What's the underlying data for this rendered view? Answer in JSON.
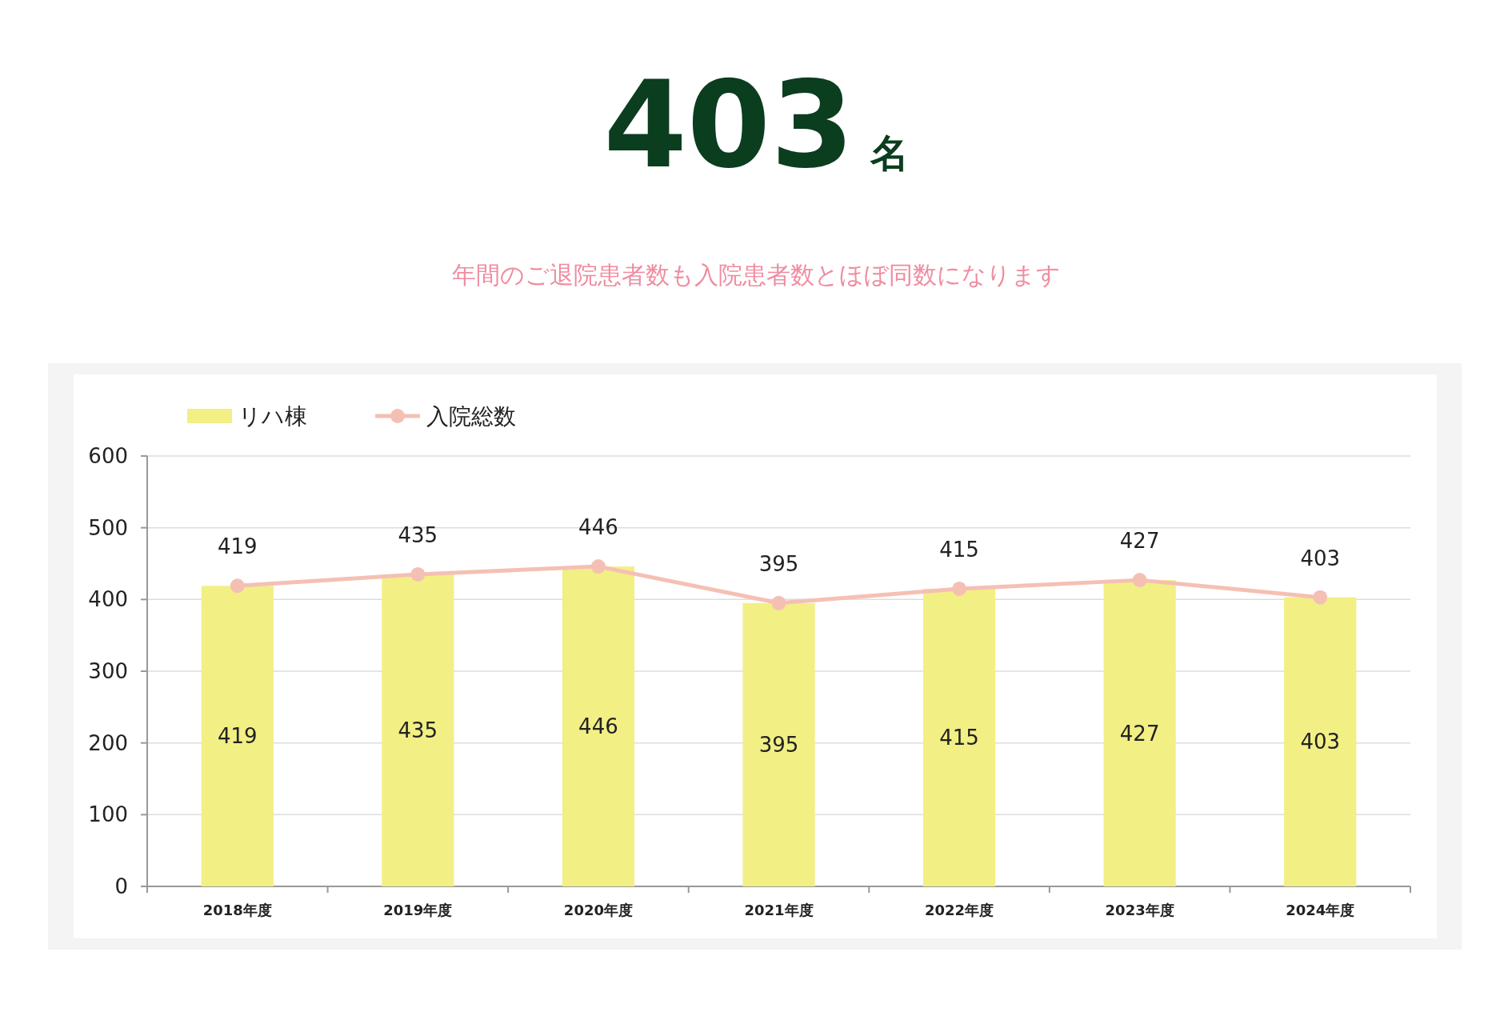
{
  "chart_data": {
    "type": "bar",
    "title": "403名",
    "subtitle": "年間のご退院患者数も入院患者数とほぼ同数になります",
    "categories": [
      "2018年度",
      "2019年度",
      "2020年度",
      "2021年度",
      "2022年度",
      "2023年度",
      "2024年度"
    ],
    "series": [
      {
        "name": "リハ棟",
        "color": "#f2ef85",
        "values": [
          419,
          435,
          446,
          395,
          415,
          427,
          403
        ]
      },
      {
        "name": "入院総数",
        "type": "line",
        "color": "#f5c0b4",
        "marker": "circle",
        "values": [
          419,
          435,
          446,
          395,
          415,
          427,
          403
        ]
      }
    ],
    "ylim": [
      0,
      600
    ],
    "yticks": [
      0,
      100,
      200,
      300,
      400,
      500,
      600
    ],
    "grid": "y",
    "legend": "top left",
    "data_labels": true
  }
}
